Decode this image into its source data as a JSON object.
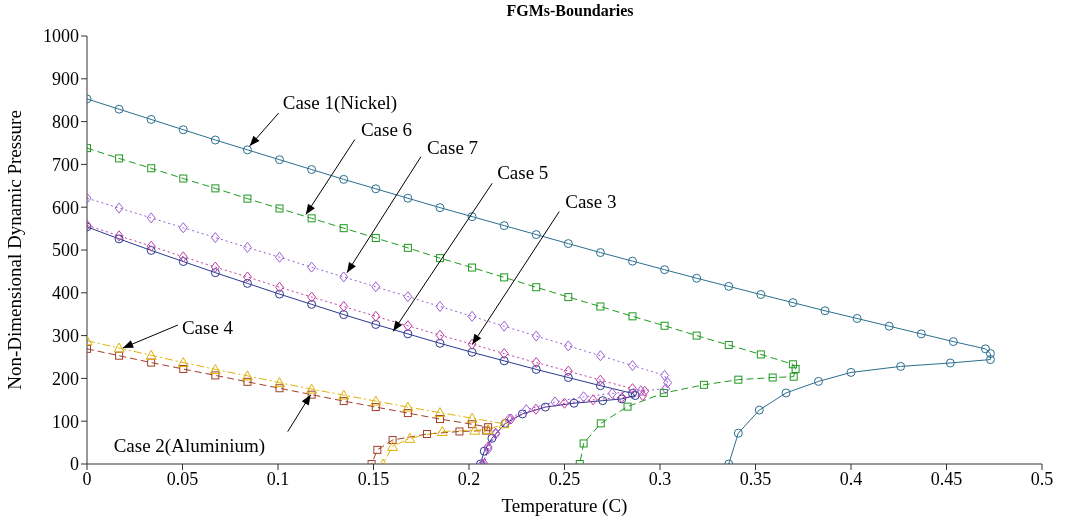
{
  "chart_data": {
    "type": "line",
    "title": "FGMs-Boundaries",
    "xlabel": "Temperature (C)",
    "ylabel": "Non-Dimensional Dynamic Pressure",
    "xlim": [
      0,
      0.5
    ],
    "ylim": [
      0,
      1000
    ],
    "xticks": [
      0,
      0.05,
      0.1,
      0.15,
      0.2,
      0.25,
      0.3,
      0.35,
      0.4,
      0.45,
      0.5
    ],
    "yticks": [
      0,
      100,
      200,
      300,
      400,
      500,
      600,
      700,
      800,
      900,
      1000
    ],
    "series": [
      {
        "color": "#2b6f8e",
        "marker": "circle",
        "line_style": "solid",
        "x": [
          0,
          0.0168,
          0.0336,
          0.0504,
          0.0672,
          0.084,
          0.1008,
          0.1176,
          0.1344,
          0.1512,
          0.168,
          0.1848,
          0.2016,
          0.2184,
          0.2352,
          0.252,
          0.2688,
          0.2856,
          0.3024,
          0.3192,
          0.336,
          0.3528,
          0.3696,
          0.3864,
          0.4032,
          0.42,
          0.4368,
          0.4536,
          0.4704,
          0.473,
          0.473,
          0.452,
          0.426,
          0.4,
          0.383,
          0.366,
          0.352,
          0.341,
          0.336
        ],
        "values": [
          853,
          829,
          805,
          781,
          757,
          734,
          711,
          688,
          665,
          643,
          621,
          599,
          578,
          557,
          536,
          515,
          494,
          474,
          454,
          434,
          415,
          396,
          377,
          358,
          340,
          322,
          304,
          286,
          269,
          258,
          244,
          236,
          228,
          214,
          193,
          166,
          126,
          72,
          0
        ]
      },
      {
        "color": "#1f9a1f",
        "marker": "square",
        "line_style": "dashed",
        "x": [
          0,
          0.0168,
          0.0336,
          0.0504,
          0.0672,
          0.084,
          0.1008,
          0.1176,
          0.1344,
          0.1512,
          0.168,
          0.1848,
          0.2016,
          0.2184,
          0.2352,
          0.252,
          0.2688,
          0.2856,
          0.3024,
          0.3192,
          0.336,
          0.3528,
          0.3696,
          0.371,
          0.37,
          0.359,
          0.341,
          0.323,
          0.302,
          0.283,
          0.269,
          0.26,
          0.258
        ],
        "values": [
          738,
          714,
          691,
          667,
          644,
          620,
          597,
          574,
          551,
          528,
          505,
          481,
          459,
          436,
          413,
          390,
          368,
          345,
          323,
          300,
          278,
          256,
          233,
          222,
          204,
          202,
          197,
          185,
          166,
          134,
          95,
          48,
          0
        ]
      },
      {
        "color": "#2b3990",
        "marker": "circle",
        "line_style": "solid",
        "x": [
          0,
          0.0168,
          0.0336,
          0.0504,
          0.0672,
          0.084,
          0.1008,
          0.1176,
          0.1344,
          0.1512,
          0.168,
          0.1848,
          0.2016,
          0.2184,
          0.2352,
          0.252,
          0.2688,
          0.2856,
          0.287,
          0.28,
          0.27,
          0.255,
          0.24,
          0.228,
          0.219,
          0.212,
          0.208,
          0.206
        ],
        "values": [
          554,
          526,
          499,
          473,
          447,
          422,
          397,
          373,
          349,
          326,
          304,
          282,
          261,
          241,
          221,
          202,
          183,
          165,
          160,
          152,
          148,
          142,
          133,
          117,
          95,
          60,
          30,
          0
        ]
      },
      {
        "color": "#c2389f",
        "marker": "diamond",
        "line_style": "dotted",
        "x": [
          0,
          0.0168,
          0.0336,
          0.0504,
          0.0672,
          0.084,
          0.1008,
          0.1176,
          0.1344,
          0.1512,
          0.168,
          0.1848,
          0.2016,
          0.2184,
          0.2352,
          0.252,
          0.2688,
          0.2856,
          0.292,
          0.291,
          0.28,
          0.265,
          0.25,
          0.235,
          0.222,
          0.214,
          0.21,
          0.208
        ],
        "values": [
          558,
          533,
          509,
          484,
          460,
          437,
          413,
          390,
          368,
          345,
          323,
          301,
          280,
          258,
          237,
          217,
          196,
          176,
          170,
          160,
          155,
          150,
          142,
          128,
          105,
          72,
          40,
          0
        ]
      },
      {
        "color": "#9b5fd6",
        "marker": "diamond",
        "line_style": "dotted",
        "x": [
          0,
          0.0168,
          0.0336,
          0.0504,
          0.0672,
          0.084,
          0.1008,
          0.1176,
          0.1344,
          0.1512,
          0.168,
          0.1848,
          0.2016,
          0.2184,
          0.2352,
          0.252,
          0.2688,
          0.2856,
          0.3024,
          0.304,
          0.303,
          0.29,
          0.275,
          0.26,
          0.245,
          0.23,
          0.221,
          0.214,
          0.21,
          0.207
        ],
        "values": [
          621,
          598,
          575,
          552,
          529,
          506,
          483,
          460,
          437,
          414,
          391,
          368,
          345,
          322,
          299,
          276,
          253,
          230,
          207,
          190,
          176,
          171,
          165,
          157,
          145,
          127,
          105,
          70,
          35,
          0
        ]
      },
      {
        "color": "#a0402a",
        "marker": "square",
        "line_style": "dashed",
        "x": [
          0,
          0.0168,
          0.0336,
          0.0504,
          0.0672,
          0.084,
          0.1008,
          0.1176,
          0.1344,
          0.1512,
          0.168,
          0.1848,
          0.2016,
          0.21,
          0.209,
          0.195,
          0.178,
          0.16,
          0.152,
          0.149
        ],
        "values": [
          269,
          253,
          237,
          222,
          207,
          192,
          177,
          162,
          147,
          133,
          119,
          105,
          93,
          86,
          78,
          76,
          70,
          56,
          33,
          0
        ]
      },
      {
        "color": "#e0b20a",
        "marker": "triangle",
        "line_style": "dashdot",
        "x": [
          0,
          0.0168,
          0.0336,
          0.0504,
          0.0672,
          0.084,
          0.1008,
          0.1176,
          0.1344,
          0.1512,
          0.168,
          0.1848,
          0.2016,
          0.2184,
          0.21,
          0.203,
          0.186,
          0.169,
          0.16,
          0.155
        ],
        "values": [
          288,
          271,
          254,
          237,
          221,
          206,
          190,
          175,
          161,
          147,
          133,
          120,
          107,
          94,
          80,
          79,
          76,
          60,
          41,
          0
        ]
      }
    ],
    "annotations": [
      {
        "text": "Case 1(Nickel)",
        "x": 0.0852,
        "y": 743
      },
      {
        "text": "Case 6",
        "x": 0.1146,
        "y": 583
      },
      {
        "text": "Case 7",
        "x": 0.1361,
        "y": 447
      },
      {
        "text": "Case 5",
        "x": 0.1603,
        "y": 310
      },
      {
        "text": "Case 3",
        "x": 0.2017,
        "y": 279
      },
      {
        "text": "Case 4",
        "x": 0.0188,
        "y": 271
      },
      {
        "text": "Case 2(Aluminium)",
        "x": 0.1171,
        "y": 162
      }
    ]
  }
}
